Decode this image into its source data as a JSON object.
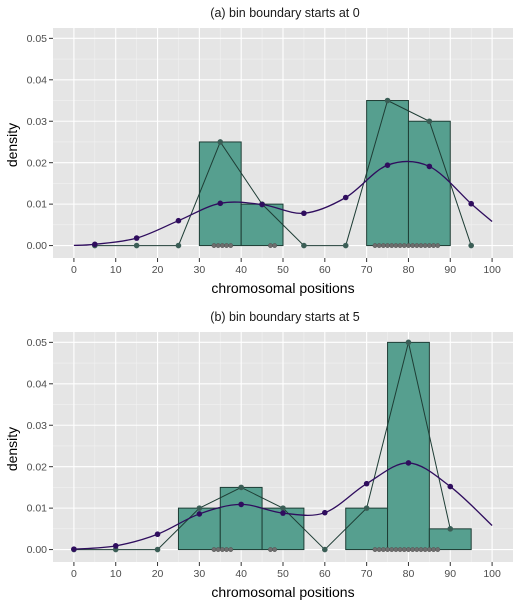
{
  "chart_data": [
    {
      "type": "histogram",
      "title": "(a) bin boundary starts at 0",
      "xlabel": "chromosomal positions",
      "ylabel": "density",
      "xlim": [
        -5,
        105
      ],
      "ylim": [
        -0.003,
        0.0525
      ],
      "x_ticks": [
        0,
        10,
        20,
        30,
        40,
        50,
        60,
        70,
        80,
        90,
        100
      ],
      "y_ticks": [
        0.0,
        0.01,
        0.02,
        0.03,
        0.04,
        0.05
      ],
      "y_tick_labels": [
        "0.00",
        "0.01",
        "0.02",
        "0.03",
        "0.04",
        "0.05"
      ],
      "bins": [
        {
          "x0": 30,
          "x1": 40,
          "density": 0.025
        },
        {
          "x0": 40,
          "x1": 50,
          "density": 0.01
        },
        {
          "x0": 70,
          "x1": 80,
          "density": 0.035
        },
        {
          "x0": 80,
          "x1": 90,
          "density": 0.03
        }
      ],
      "bin_midpoints": [
        {
          "x": 5,
          "y": 0
        },
        {
          "x": 15,
          "y": 0
        },
        {
          "x": 25,
          "y": 0
        },
        {
          "x": 35,
          "y": 0.025
        },
        {
          "x": 45,
          "y": 0.01
        },
        {
          "x": 55,
          "y": 0
        },
        {
          "x": 65,
          "y": 0
        },
        {
          "x": 75,
          "y": 0.035
        },
        {
          "x": 85,
          "y": 0.03
        },
        {
          "x": 95,
          "y": 0
        }
      ],
      "kde_points": [
        {
          "x": 5,
          "y": 0.0003
        },
        {
          "x": 15,
          "y": 0.0018
        },
        {
          "x": 25,
          "y": 0.006
        },
        {
          "x": 35,
          "y": 0.0102
        },
        {
          "x": 45,
          "y": 0.0099
        },
        {
          "x": 55,
          "y": 0.0078
        },
        {
          "x": 65,
          "y": 0.0116
        },
        {
          "x": 75,
          "y": 0.0194
        },
        {
          "x": 85,
          "y": 0.0191
        },
        {
          "x": 95,
          "y": 0.0101
        }
      ],
      "rug": [
        33.5,
        34.5,
        35.5,
        36.5,
        37.5,
        47,
        48,
        72,
        73,
        74,
        75,
        76,
        77,
        78,
        79,
        80,
        81,
        82,
        83,
        84,
        85,
        86,
        87
      ]
    },
    {
      "type": "histogram",
      "title": "(b) bin boundary starts at 5",
      "xlabel": "chromosomal positions",
      "ylabel": "density",
      "xlim": [
        -5,
        105
      ],
      "ylim": [
        -0.003,
        0.0525
      ],
      "x_ticks": [
        0,
        10,
        20,
        30,
        40,
        50,
        60,
        70,
        80,
        90,
        100
      ],
      "y_ticks": [
        0.0,
        0.01,
        0.02,
        0.03,
        0.04,
        0.05
      ],
      "y_tick_labels": [
        "0.00",
        "0.01",
        "0.02",
        "0.03",
        "0.04",
        "0.05"
      ],
      "bins": [
        {
          "x0": 25,
          "x1": 35,
          "density": 0.01
        },
        {
          "x0": 35,
          "x1": 45,
          "density": 0.015
        },
        {
          "x0": 45,
          "x1": 55,
          "density": 0.01
        },
        {
          "x0": 65,
          "x1": 75,
          "density": 0.01
        },
        {
          "x0": 75,
          "x1": 85,
          "density": 0.05
        },
        {
          "x0": 85,
          "x1": 95,
          "density": 0.005
        }
      ],
      "bin_midpoints": [
        {
          "x": 0,
          "y": 0
        },
        {
          "x": 10,
          "y": 0
        },
        {
          "x": 20,
          "y": 0
        },
        {
          "x": 30,
          "y": 0.01
        },
        {
          "x": 40,
          "y": 0.015
        },
        {
          "x": 50,
          "y": 0.01
        },
        {
          "x": 60,
          "y": 0
        },
        {
          "x": 70,
          "y": 0.01
        },
        {
          "x": 80,
          "y": 0.05
        },
        {
          "x": 90,
          "y": 0.005
        }
      ],
      "kde_points": [
        {
          "x": 0,
          "y": 0.0001
        },
        {
          "x": 10,
          "y": 0.0009
        },
        {
          "x": 20,
          "y": 0.0037
        },
        {
          "x": 30,
          "y": 0.0086
        },
        {
          "x": 40,
          "y": 0.0109
        },
        {
          "x": 50,
          "y": 0.0088
        },
        {
          "x": 60,
          "y": 0.0089
        },
        {
          "x": 70,
          "y": 0.0159
        },
        {
          "x": 80,
          "y": 0.0209
        },
        {
          "x": 90,
          "y": 0.0152
        }
      ],
      "rug": [
        33.5,
        34.5,
        35.5,
        36.5,
        37.5,
        47,
        48,
        72,
        73,
        74,
        75,
        76,
        77,
        78,
        79,
        80,
        81,
        82,
        83,
        84,
        85,
        86,
        87
      ]
    }
  ],
  "colors": {
    "panel": "#e5e5e5",
    "grid_major": "#ffffff",
    "grid_minor": "#f2f2f2",
    "bar_fill": "#569f8f",
    "bar_outline": "#1e3d35",
    "midpoint": "#3b5e56",
    "rug": "#6e6e6e",
    "kde": "#2f0d5e",
    "kde_point": "#2f0d5e"
  }
}
